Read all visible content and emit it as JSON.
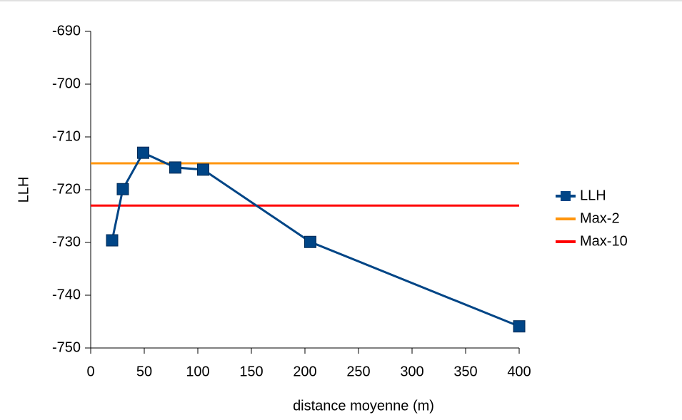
{
  "chart_data": {
    "type": "line",
    "xlabel": "distance moyenne (m)",
    "ylabel": "LLH",
    "xlim": [
      0,
      400
    ],
    "xticks": [
      0,
      50,
      100,
      150,
      200,
      250,
      300,
      350,
      400
    ],
    "ylim": [
      -750,
      -690
    ],
    "yticks": [
      -690,
      -700,
      -710,
      -720,
      -730,
      -740,
      -750
    ],
    "grid": false,
    "legend": "right",
    "series": [
      {
        "name": "LLH",
        "color": "#004586",
        "marker": "square",
        "x": [
          20,
          30,
          49,
          79,
          105,
          205,
          400
        ],
        "values": [
          -729.6,
          -719.9,
          -713,
          -715.8,
          -716.2,
          -729.9,
          -745.9
        ]
      },
      {
        "name": "Max-2",
        "color": "#ff950e",
        "marker": "none",
        "x": [
          0,
          400
        ],
        "values": [
          -715,
          -715
        ]
      },
      {
        "name": "Max-10",
        "color": "#ff0000",
        "marker": "none",
        "x": [
          0,
          400
        ],
        "values": [
          -723,
          -723
        ]
      }
    ]
  }
}
